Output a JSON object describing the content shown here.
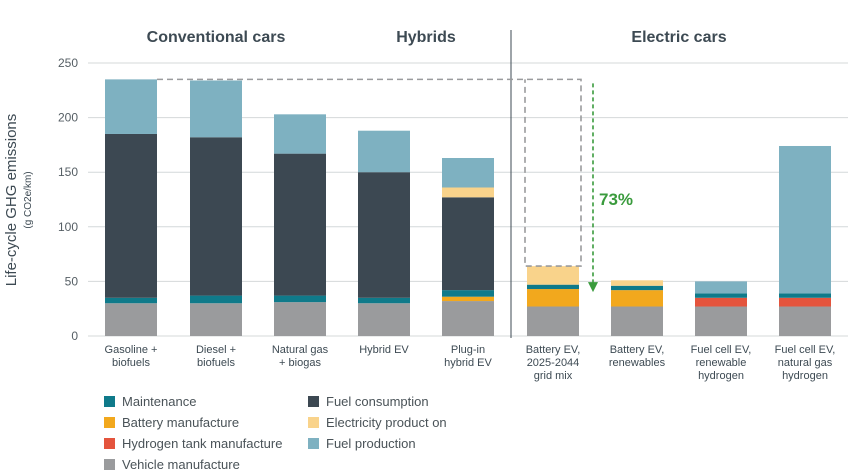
{
  "chart_data": {
    "type": "bar",
    "stacked": true,
    "ylabel": "Life-cycle GHG emissions",
    "yunit": "(g CO2e/km)",
    "ylim": [
      0,
      250
    ],
    "yticks": [
      "0",
      "50",
      "100",
      "150",
      "200",
      "250"
    ],
    "groups": [
      {
        "label": "Conventional cars",
        "categories": [
          0,
          1,
          2
        ]
      },
      {
        "label": "Hybrids",
        "categories": [
          3,
          4
        ]
      },
      {
        "label": "Electric cars",
        "categories": [
          5,
          6,
          7,
          8
        ]
      }
    ],
    "categories": [
      [
        "Gasoline +",
        "biofuels"
      ],
      [
        "Diesel +",
        "biofuels"
      ],
      [
        "Natural gas",
        "+ biogas"
      ],
      [
        "Hybrid EV"
      ],
      [
        "Plug-in",
        "hybrid EV"
      ],
      [
        "Battery EV,",
        "2025-2044",
        "grid mix"
      ],
      [
        "Battery EV,",
        "renewables"
      ],
      [
        "Fuel cell EV,",
        "renewable",
        "hydrogen"
      ],
      [
        "Fuel cell EV,",
        "natural gas",
        "hydrogen"
      ]
    ],
    "series": [
      {
        "name": "Vehicle manufacture",
        "color": "#9a9b9d",
        "values": [
          30,
          30,
          31,
          30,
          32,
          27,
          27,
          27,
          27
        ]
      },
      {
        "name": "Battery manufacture",
        "color": "#f2a81d",
        "values": [
          0,
          0,
          0,
          0,
          4,
          16,
          15,
          0,
          0
        ]
      },
      {
        "name": "Hydrogen tank manufacture",
        "color": "#e4543d",
        "values": [
          0,
          0,
          0,
          0,
          0,
          0,
          0,
          8,
          8
        ]
      },
      {
        "name": "Maintenance",
        "color": "#0f7a8a",
        "values": [
          5,
          7,
          6,
          5,
          6,
          4,
          4,
          4,
          4
        ]
      },
      {
        "name": "Fuel consumption",
        "color": "#3c4852",
        "values": [
          150,
          145,
          130,
          115,
          85,
          0,
          0,
          0,
          0
        ]
      },
      {
        "name": "Electricity product on",
        "color": "#f9d38b",
        "values": [
          0,
          0,
          0,
          0,
          9,
          17,
          5,
          0,
          0
        ]
      },
      {
        "name": "Fuel production",
        "color": "#7eb1c1",
        "values": [
          50,
          52,
          36,
          38,
          27,
          0,
          0,
          11,
          135
        ]
      }
    ],
    "annotation": {
      "text": "73%",
      "from_category": 0,
      "to_category": 5,
      "color": "#3a9b3d"
    }
  },
  "legend": {
    "left": [
      {
        "label": "Maintenance",
        "color": "#0f7a8a"
      },
      {
        "label": "Battery manufacture",
        "color": "#f2a81d"
      },
      {
        "label": "Hydrogen tank manufacture",
        "color": "#e4543d"
      },
      {
        "label": "Vehicle manufacture",
        "color": "#9a9b9d"
      }
    ],
    "right": [
      {
        "label": "Fuel consumption",
        "color": "#3c4852"
      },
      {
        "label": "Electricity product on",
        "color": "#f9d38b"
      },
      {
        "label": "Fuel production",
        "color": "#7eb1c1"
      }
    ]
  }
}
